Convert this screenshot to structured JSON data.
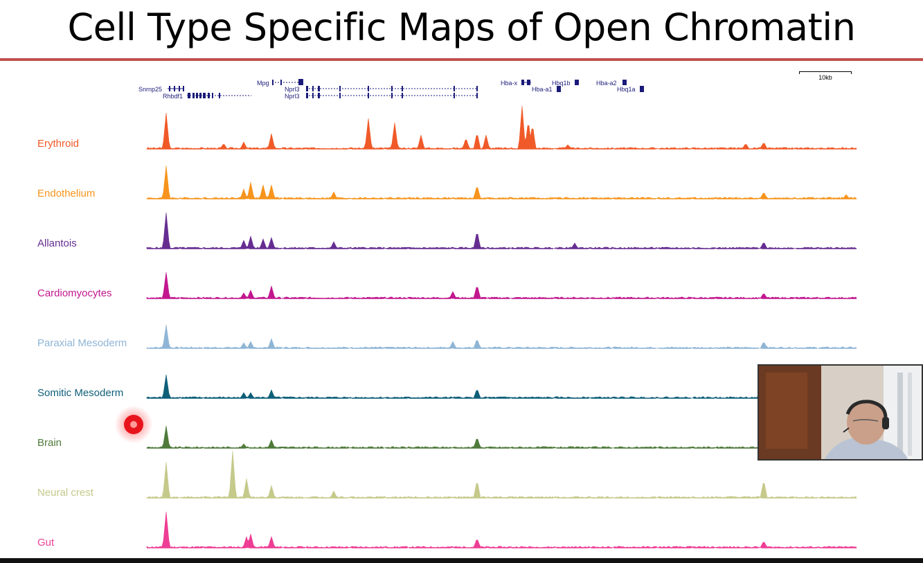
{
  "slide": {
    "title": "Cell Type Specific Maps of Open Chromatin",
    "scale_bar_label": "10kb"
  },
  "genes": [
    {
      "name": "Snrnp25"
    },
    {
      "name": "Rhbdf1"
    },
    {
      "name": "Mpg"
    },
    {
      "name": "Nprl3"
    },
    {
      "name": "Nprl3"
    },
    {
      "name": "Hba-x"
    },
    {
      "name": "Hbq1b"
    },
    {
      "name": "Hba-a1"
    },
    {
      "name": "Hba-a2"
    },
    {
      "name": "Hbq1a"
    }
  ],
  "tracks": [
    {
      "name": "Erythroid",
      "color": "#f05a28"
    },
    {
      "name": "Endothelium",
      "color": "#f7941d"
    },
    {
      "name": "Allantois",
      "color": "#662d91"
    },
    {
      "name": "Cardiomyocytes",
      "color": "#c2178e"
    },
    {
      "name": "Paraxial Mesoderm",
      "color": "#8fb5d6"
    },
    {
      "name": "Somitic Mesoderm",
      "color": "#0e5f78"
    },
    {
      "name": "Brain",
      "color": "#4f7a3a"
    },
    {
      "name": "Neural crest",
      "color": "#c5c98a"
    },
    {
      "name": "Gut",
      "color": "#ee3d94"
    }
  ],
  "icons": {
    "cursor": "cursor-highlight-icon",
    "webcam": "presenter-webcam-icon"
  }
}
